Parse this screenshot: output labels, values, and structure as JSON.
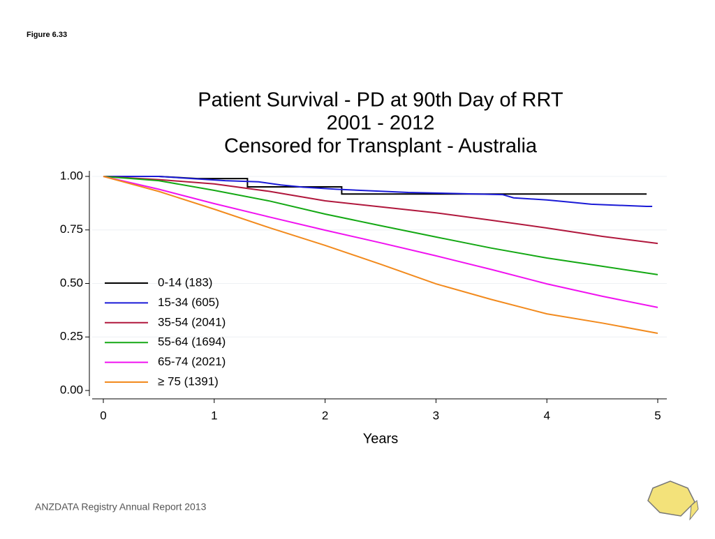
{
  "figure_label": "Figure 6.33",
  "footer": "ANZDATA Registry Annual Report 2013",
  "chart_data": {
    "type": "line",
    "title": [
      "Patient Survival - PD at 90th Day of RRT",
      "2001 - 2012",
      "Censored for Transplant - Australia"
    ],
    "x_label": "Years",
    "xlim": [
      0,
      5
    ],
    "xticks": [
      0,
      1,
      2,
      3,
      4,
      5
    ],
    "ylim": [
      0,
      1
    ],
    "yticks": [
      {
        "value": 0,
        "label": "0.00"
      },
      {
        "value": 0.25,
        "label": "0.25"
      },
      {
        "value": 0.5,
        "label": "0.50"
      },
      {
        "value": 0.75,
        "label": "0.75"
      },
      {
        "value": 1,
        "label": "1.00"
      }
    ],
    "grid": true,
    "legend": "lower left",
    "series": [
      {
        "name": "0-14 (183)",
        "color": "#000000",
        "x": [
          0,
          0.5,
          0.85,
          1.3,
          1.3,
          2.15,
          2.15,
          4.9
        ],
        "values": [
          1,
          1,
          0.99,
          0.99,
          0.951,
          0.951,
          0.918,
          0.918
        ]
      },
      {
        "name": "15-34 (605)",
        "color": "#1a1ad6",
        "x": [
          0,
          0.5,
          0.8,
          1.1,
          1.4,
          1.6,
          1.8,
          2.1,
          2.75,
          3.2,
          3.6,
          3.7,
          4.0,
          4.2,
          4.4,
          4.9,
          4.95
        ],
        "values": [
          1,
          1,
          0.99,
          0.98,
          0.975,
          0.96,
          0.95,
          0.94,
          0.925,
          0.92,
          0.915,
          0.9,
          0.89,
          0.88,
          0.87,
          0.86,
          0.86
        ]
      },
      {
        "name": "35-54 (2041)",
        "color": "#b0173c",
        "x": [
          0,
          0.5,
          1,
          1.5,
          2,
          2.5,
          3,
          3.5,
          4,
          4.5,
          5
        ],
        "values": [
          1,
          0.985,
          0.965,
          0.93,
          0.886,
          0.858,
          0.83,
          0.795,
          0.759,
          0.72,
          0.687
        ]
      },
      {
        "name": "55-64 (1694)",
        "color": "#13a813",
        "x": [
          0,
          0.5,
          1,
          1.5,
          2,
          2.5,
          3,
          3.5,
          4,
          4.5,
          5
        ],
        "values": [
          1,
          0.98,
          0.935,
          0.885,
          0.824,
          0.77,
          0.717,
          0.665,
          0.619,
          0.58,
          0.541
        ]
      },
      {
        "name": "65-74 (2021)",
        "color": "#f012f0",
        "x": [
          0,
          0.5,
          1,
          1.5,
          2,
          2.5,
          3,
          3.5,
          4,
          4.5,
          5
        ],
        "values": [
          1,
          0.94,
          0.873,
          0.81,
          0.749,
          0.69,
          0.629,
          0.565,
          0.498,
          0.44,
          0.388
        ]
      },
      {
        "name": "≥ 75 (1391)",
        "color": "#f28a1d",
        "x": [
          0,
          0.5,
          1,
          1.5,
          2,
          2.5,
          3,
          3.5,
          4,
          4.5,
          5
        ],
        "values": [
          1,
          0.93,
          0.847,
          0.76,
          0.678,
          0.59,
          0.498,
          0.425,
          0.358,
          0.315,
          0.267
        ]
      }
    ]
  }
}
